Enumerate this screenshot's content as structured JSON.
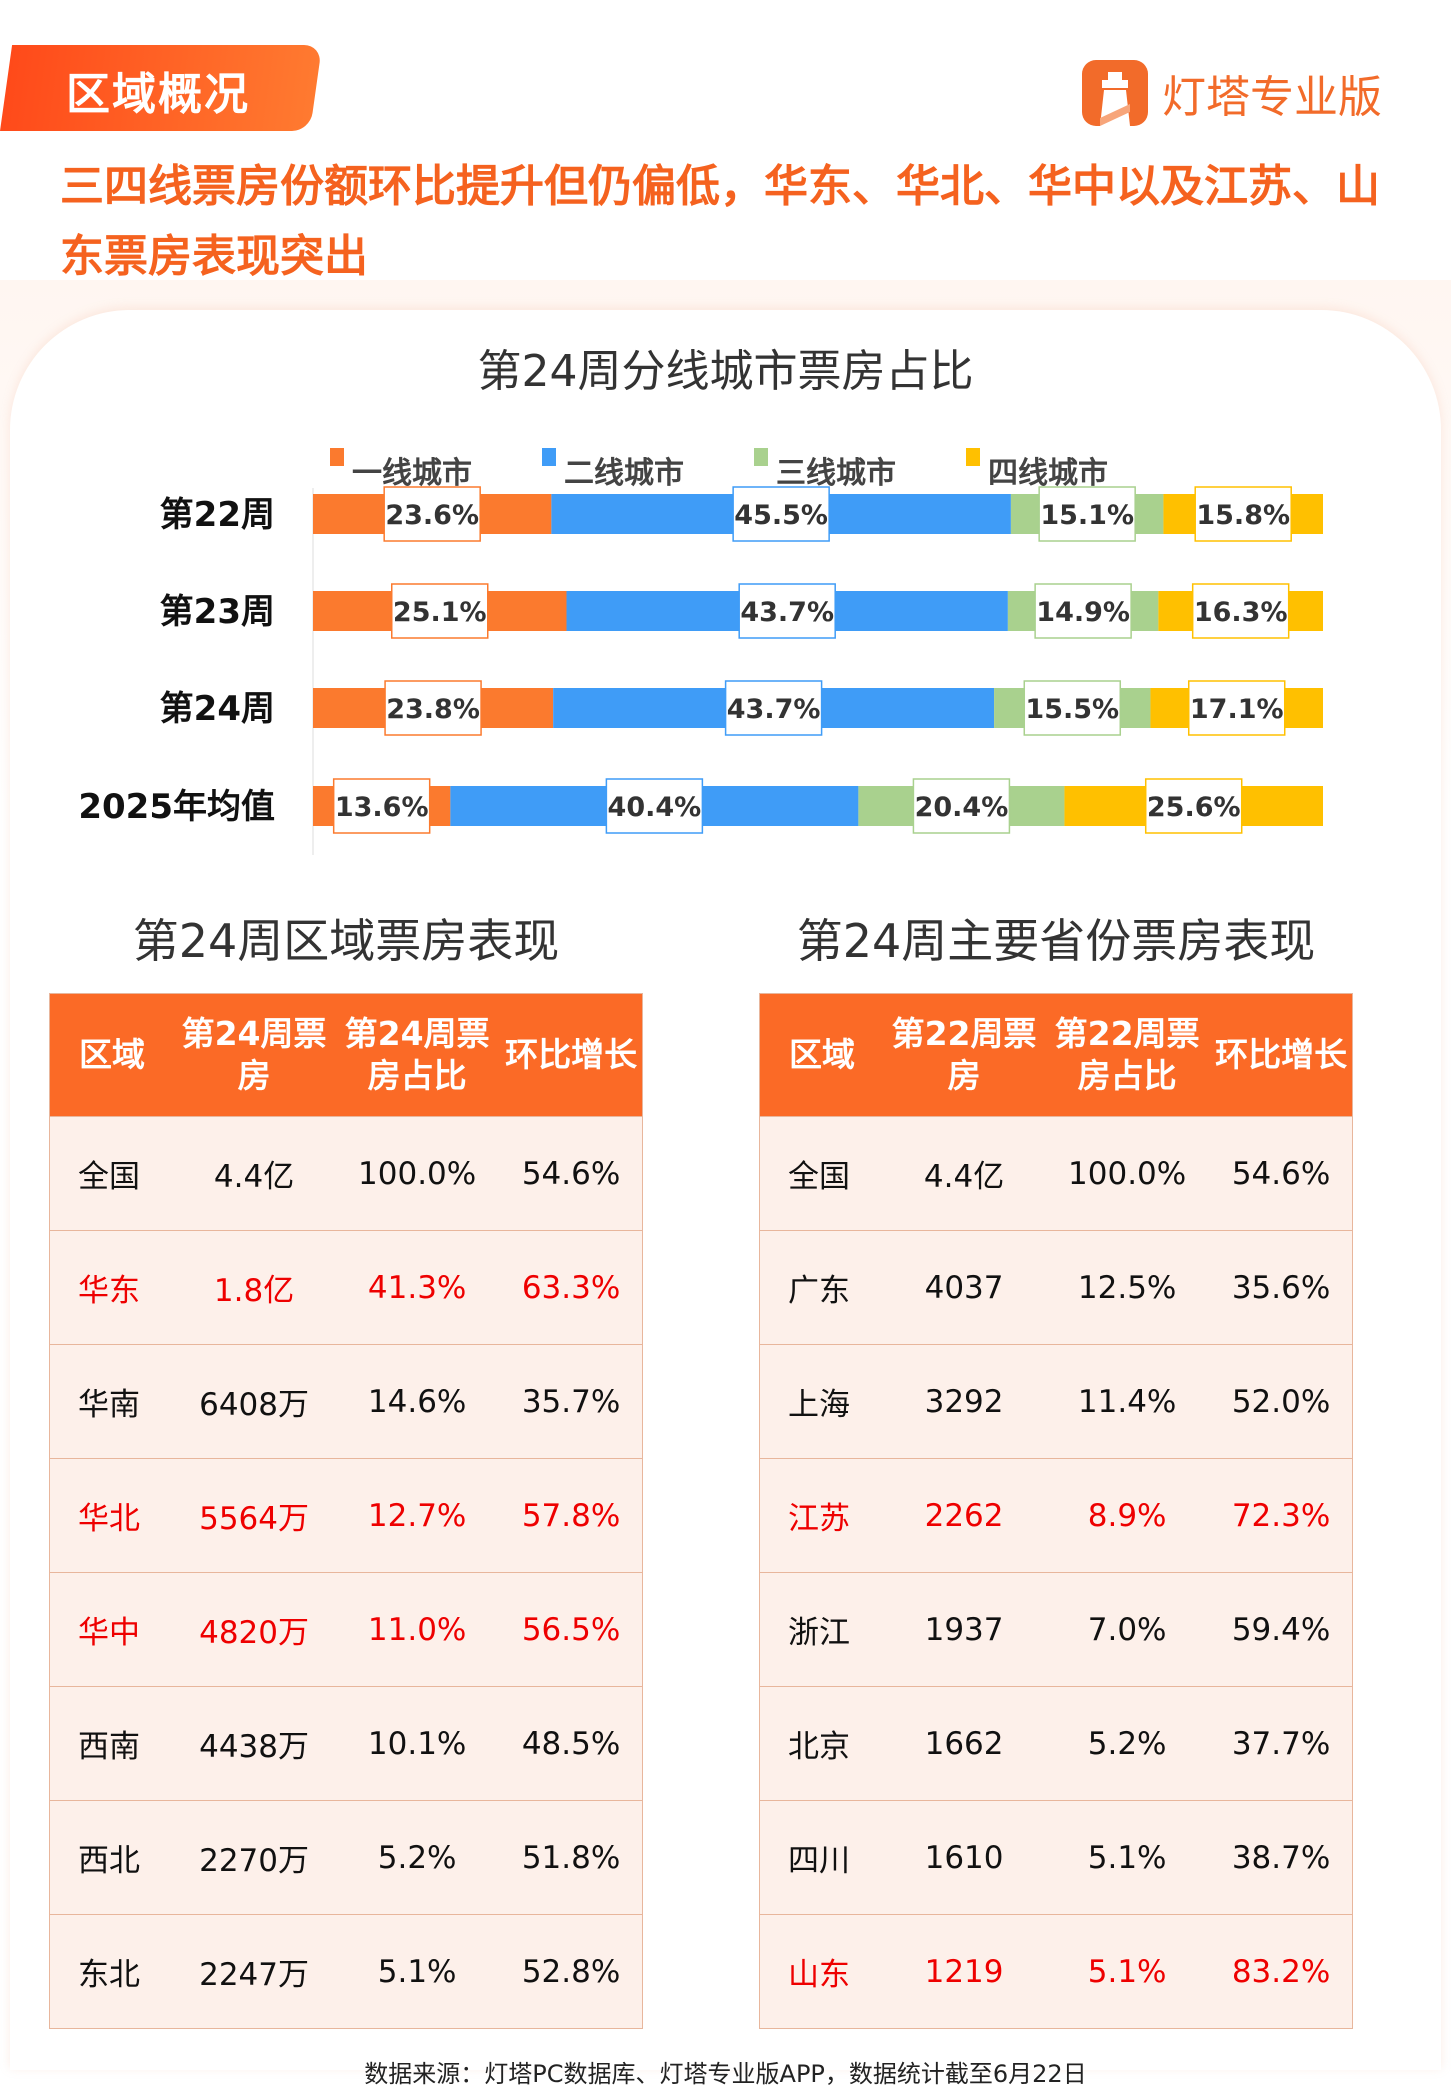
{
  "header": {
    "tag": "区域概况",
    "brand": "灯塔专业版",
    "headline": "三四线票房份额环比提升但仍偏低，华东、华北、华中以及江苏、山东票房表现突出"
  },
  "chart_data": {
    "type": "bar",
    "orientation": "horizontal",
    "stacked": true,
    "title": "第24周分线城市票房占比",
    "categories": [
      "第22周",
      "第23周",
      "第24周",
      "2025年均值"
    ],
    "series": [
      {
        "name": "一线城市",
        "color": "#fb7a2e",
        "values": [
          23.6,
          25.1,
          23.8,
          13.6
        ]
      },
      {
        "name": "二线城市",
        "color": "#3f9cf7",
        "values": [
          45.5,
          43.7,
          43.7,
          40.4
        ]
      },
      {
        "name": "三线城市",
        "color": "#a9d18e",
        "values": [
          15.1,
          14.9,
          15.5,
          20.4
        ]
      },
      {
        "name": "四线城市",
        "color": "#ffc000",
        "values": [
          15.8,
          16.3,
          17.1,
          25.6
        ]
      }
    ],
    "legend": "top",
    "unit": "%"
  },
  "region_table": {
    "title": "第24周区域票房表现",
    "headers": [
      "区域",
      "第24周票房",
      "第24周票房占比",
      "环比增长"
    ],
    "rows": [
      [
        "全国",
        "4.4亿",
        "100.0%",
        "54.6%",
        false
      ],
      [
        "华东",
        "1.8亿",
        "41.3%",
        "63.3%",
        true
      ],
      [
        "华南",
        "6408万",
        "14.6%",
        "35.7%",
        false
      ],
      [
        "华北",
        "5564万",
        "12.7%",
        "57.8%",
        true
      ],
      [
        "华中",
        "4820万",
        "11.0%",
        "56.5%",
        true
      ],
      [
        "西南",
        "4438万",
        "10.1%",
        "48.5%",
        false
      ],
      [
        "西北",
        "2270万",
        "5.2%",
        "51.8%",
        false
      ],
      [
        "东北",
        "2247万",
        "5.1%",
        "52.8%",
        false
      ]
    ]
  },
  "province_table": {
    "title": "第24周主要省份票房表现",
    "headers": [
      "区域",
      "第22周票房",
      "第22周票房占比",
      "环比增长"
    ],
    "rows": [
      [
        "全国",
        "4.4亿",
        "100.0%",
        "54.6%",
        false
      ],
      [
        "广东",
        "4037",
        "12.5%",
        "35.6%",
        false
      ],
      [
        "上海",
        "3292",
        "11.4%",
        "52.0%",
        false
      ],
      [
        "江苏",
        "2262",
        "8.9%",
        "72.3%",
        true
      ],
      [
        "浙江",
        "1937",
        "7.0%",
        "59.4%",
        false
      ],
      [
        "北京",
        "1662",
        "5.2%",
        "37.7%",
        false
      ],
      [
        "四川",
        "1610",
        "5.1%",
        "38.7%",
        false
      ],
      [
        "山东",
        "1219",
        "5.1%",
        "83.2%",
        true
      ]
    ]
  },
  "footer": "数据来源：灯塔PC数据库、灯塔专业版APP，数据统计截至6月22日",
  "colors": {
    "accent": "#fb6a26",
    "highlight": "#e00000"
  }
}
